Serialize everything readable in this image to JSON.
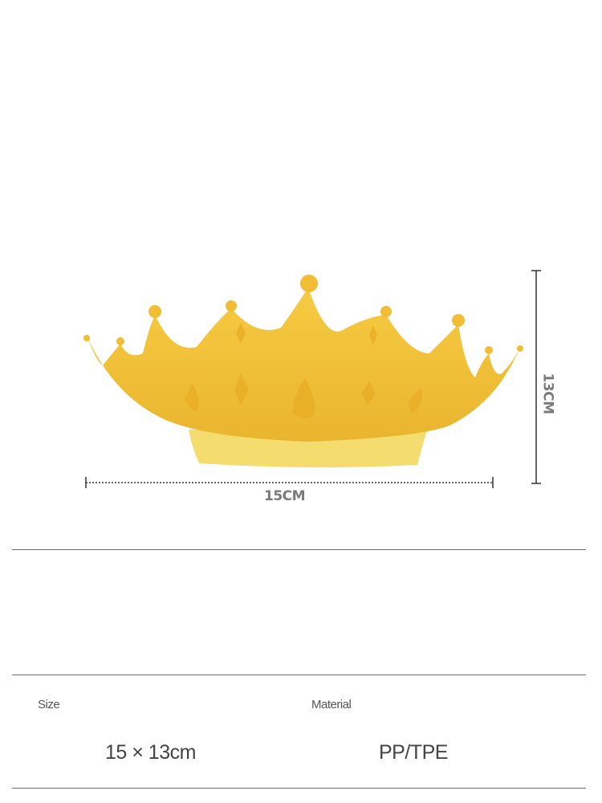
{
  "product_image": {
    "description_icon": "crown-icon",
    "colors": {
      "crown": "#f2c23a",
      "crown_shade": "#e6b22a",
      "band": "#f5dc70"
    }
  },
  "dimensions": {
    "width_label": "15CM",
    "height_label": "13CM"
  },
  "specs": {
    "size_label": "Size",
    "size_value": "15 × 13cm",
    "material_label": "Material",
    "material_value": "PP/TPE"
  }
}
